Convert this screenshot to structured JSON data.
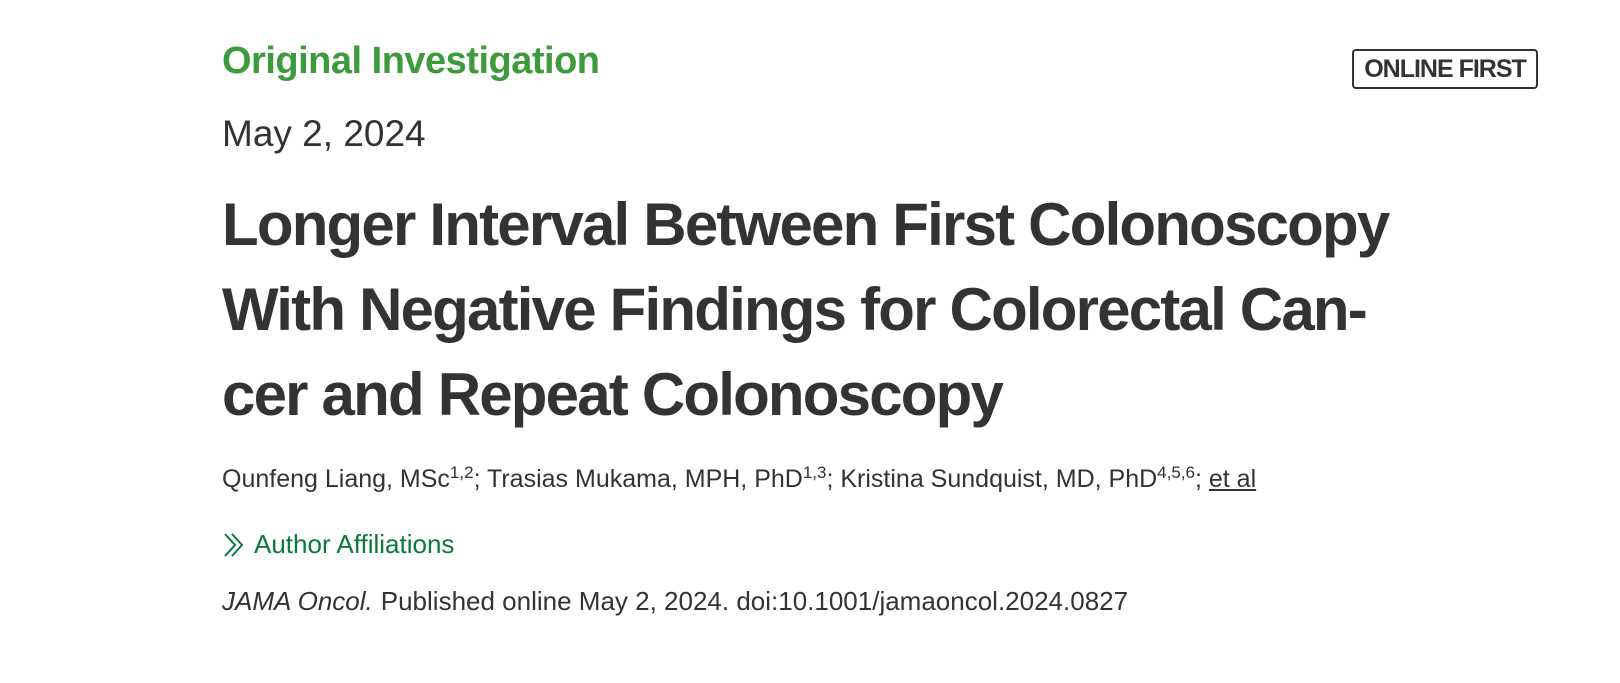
{
  "article": {
    "category": "Original Investigation",
    "badge": "ONLINE FIRST",
    "date": "May 2, 2024",
    "title_lines": [
      "Longer Interval Between First Colonoscopy",
      "With Negative Findings for Colorectal Can-",
      "cer and Repeat Colonoscopy"
    ],
    "authors": {
      "list": [
        {
          "name": "Qunfeng Liang, MSc",
          "sup": "1,2"
        },
        {
          "name": "Trasias Mukama, MPH, PhD",
          "sup": "1,3"
        },
        {
          "name": "Kristina Sundquist, MD, PhD",
          "sup": "4,5,6"
        }
      ],
      "separator": ";",
      "et_al": "et al"
    },
    "affiliations_link": "Author Affiliations",
    "citation": {
      "journal": "JAMA Oncol.",
      "text": "Published online May 2, 2024. doi:10.1001/jamaoncol.2024.0827"
    }
  }
}
